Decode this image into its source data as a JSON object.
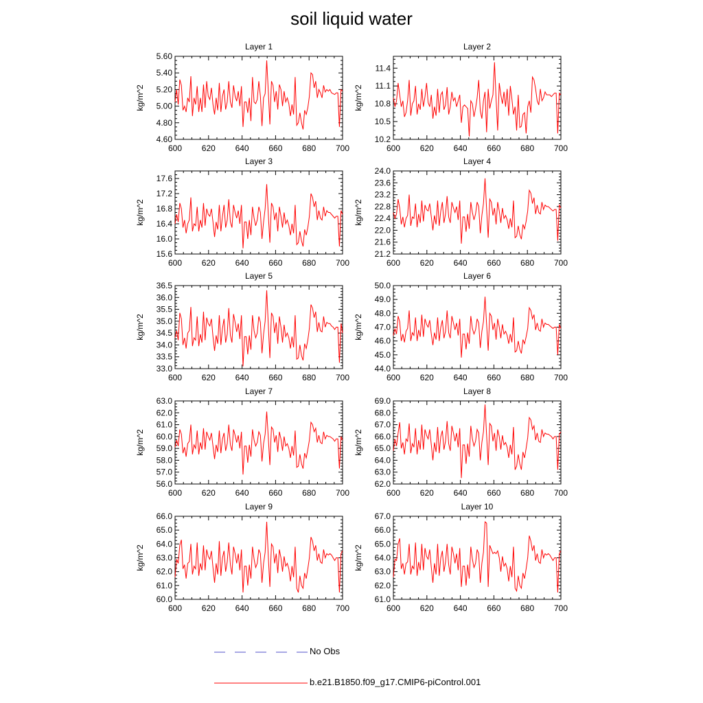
{
  "title": "soil liquid water",
  "legend": {
    "noobs_label": "No Obs",
    "noobs_color": "#5050c8",
    "run_label": "b.e21.B1850.f09_g17.CMIP6-piControl.001",
    "run_color": "#ff0000"
  },
  "chart_data": [
    {
      "type": "line",
      "title": "Layer 1",
      "ylabel": "kg/m^2",
      "xlim": [
        600,
        700
      ],
      "ylim": [
        4.6,
        5.6
      ],
      "xticks": [
        600,
        620,
        640,
        660,
        680,
        700
      ],
      "yticks": [
        "4.60",
        "4.80",
        "5.00",
        "5.20",
        "5.40",
        "5.60"
      ],
      "y": [
        5.05,
        5.2,
        5.02,
        5.32,
        5.25,
        4.95,
        5.0,
        4.93,
        5.1,
        5.05,
        5.36,
        4.88,
        5.1,
        5.02,
        5.24,
        4.93,
        5.1,
        4.93,
        5.26,
        4.98,
        5.3,
        5.12,
        5.08,
        5.22,
        5.02,
        4.9,
        5.1,
        4.95,
        5.28,
        4.93,
        5.12,
        5.2,
        4.96,
        5.05,
        5.3,
        5.05,
        4.98,
        5.25,
        5.12,
        5.06,
        5.18,
        5.0,
        5.24,
        4.75,
        5.05,
        5.05,
        4.92,
        5.1,
        4.82,
        5.35,
        5.05,
        5.03,
        5.08,
        5.3,
        5.12,
        4.76,
        5.1,
        5.15,
        5.55,
        5.18,
        4.78,
        5.3,
        5.25,
        5.05,
        5.18,
        4.96,
        5.26,
        5.2,
        5.0,
        5.18,
        5.05,
        5.1,
        5.03,
        4.88,
        5.02,
        4.9,
        5.35,
        4.77,
        4.8,
        4.92,
        4.8,
        4.72,
        4.95,
        4.9,
        4.98,
        5.12,
        5.4,
        5.38,
        5.22,
        5.3,
        5.1,
        5.2,
        5.16,
        5.1,
        5.25,
        5.17,
        5.2,
        5.18,
        5.2,
        5.16,
        5.15,
        5.14,
        5.16,
        5.16,
        4.75,
        5.2,
        5.18
      ]
    },
    {
      "type": "line",
      "title": "Layer 2",
      "ylabel": "kg/m^2",
      "xlim": [
        600,
        700
      ],
      "ylim": [
        10.2,
        11.6
      ],
      "xticks": [
        600,
        620,
        640,
        660,
        680,
        700
      ],
      "yticks": [
        "10.2",
        "10.5",
        "10.8",
        "11.1",
        "11.4"
      ],
      "y": [
        10.9,
        10.75,
        10.85,
        11.15,
        10.95,
        10.75,
        10.85,
        10.58,
        10.65,
        10.85,
        11.2,
        10.6,
        10.8,
        10.85,
        11.1,
        10.62,
        10.8,
        10.7,
        11.05,
        10.75,
        10.92,
        11.15,
        10.82,
        10.75,
        10.95,
        10.55,
        10.75,
        10.6,
        11.05,
        10.65,
        10.95,
        11.0,
        10.7,
        10.78,
        11.08,
        10.62,
        10.75,
        11.0,
        10.85,
        10.9,
        10.75,
        10.85,
        10.95,
        10.48,
        10.75,
        10.78,
        10.75,
        10.72,
        10.25,
        10.85,
        10.8,
        10.58,
        10.72,
        10.9,
        11.2,
        10.68,
        10.55,
        10.85,
        11.0,
        10.32,
        11.05,
        10.72,
        10.85,
        10.95,
        11.5,
        10.88,
        10.35,
        11.15,
        10.95,
        10.8,
        11.0,
        10.75,
        11.05,
        10.6,
        11.1,
        10.88,
        10.62,
        10.75,
        10.35,
        10.95,
        10.4,
        10.42,
        10.62,
        10.65,
        10.3,
        10.75,
        10.85,
        10.65,
        11.25,
        11.2,
        11.05,
        10.85,
        10.78,
        11.05,
        10.85,
        10.9,
        11.0,
        10.95,
        10.95,
        10.95,
        10.92,
        10.95,
        10.98,
        10.98,
        10.3,
        10.98,
        10.95
      ]
    },
    {
      "type": "line",
      "title": "Layer 3",
      "ylabel": "kg/m^2",
      "xlim": [
        600,
        700
      ],
      "ylim": [
        15.6,
        17.8
      ],
      "xticks": [
        600,
        620,
        640,
        660,
        680,
        700
      ],
      "yticks": [
        "15.6",
        "16.0",
        "16.4",
        "16.8",
        "17.2",
        "17.6"
      ],
      "y": [
        16.4,
        16.65,
        16.45,
        16.95,
        16.8,
        16.3,
        16.5,
        16.15,
        16.4,
        16.5,
        17.1,
        16.2,
        16.4,
        16.35,
        16.85,
        16.2,
        16.5,
        16.3,
        16.95,
        16.35,
        16.8,
        16.65,
        16.6,
        16.8,
        16.45,
        16.05,
        16.45,
        16.25,
        16.9,
        16.2,
        16.6,
        16.9,
        16.3,
        16.5,
        17.05,
        16.45,
        16.3,
        16.9,
        16.7,
        16.55,
        16.75,
        16.4,
        16.9,
        15.75,
        16.45,
        16.45,
        16.0,
        16.5,
        16.1,
        16.85,
        16.55,
        16.35,
        16.5,
        16.85,
        16.7,
        16.0,
        16.45,
        16.8,
        17.45,
        16.65,
        15.9,
        16.95,
        16.85,
        16.5,
        16.7,
        16.2,
        16.85,
        16.6,
        16.3,
        16.7,
        16.4,
        16.5,
        16.35,
        16.1,
        16.4,
        16.15,
        16.9,
        15.85,
        15.9,
        16.2,
        15.95,
        15.8,
        16.25,
        16.1,
        16.3,
        16.6,
        17.2,
        17.1,
        16.85,
        17.0,
        16.5,
        16.75,
        16.55,
        16.5,
        16.85,
        16.6,
        16.75,
        16.7,
        16.7,
        16.65,
        16.6,
        16.55,
        16.6,
        16.6,
        15.8,
        16.75,
        16.65
      ]
    },
    {
      "type": "line",
      "title": "Layer 4",
      "ylabel": "kg/m^2",
      "xlim": [
        600,
        700
      ],
      "ylim": [
        21.2,
        24.0
      ],
      "xticks": [
        600,
        620,
        640,
        660,
        680,
        700
      ],
      "yticks": [
        "21.2",
        "21.6",
        "22.0",
        "22.4",
        "22.8",
        "23.2",
        "23.6",
        "24.0"
      ],
      "y": [
        22.6,
        22.4,
        22.55,
        23.05,
        22.75,
        22.2,
        22.45,
        22.1,
        22.4,
        22.5,
        23.2,
        22.15,
        22.45,
        22.4,
        22.9,
        22.1,
        22.55,
        22.25,
        23.0,
        22.3,
        22.85,
        22.7,
        22.65,
        22.9,
        22.45,
        22.0,
        22.5,
        22.2,
        23.0,
        22.15,
        22.65,
        22.95,
        22.25,
        22.55,
        23.15,
        22.45,
        22.25,
        22.95,
        22.75,
        22.6,
        22.8,
        22.35,
        23.0,
        21.55,
        22.45,
        22.45,
        21.95,
        22.55,
        22.05,
        22.95,
        22.6,
        22.35,
        22.55,
        22.95,
        22.8,
        21.9,
        22.5,
        22.9,
        23.75,
        22.7,
        21.75,
        23.05,
        22.95,
        22.5,
        22.75,
        22.2,
        22.95,
        22.65,
        22.25,
        22.75,
        22.4,
        22.5,
        22.35,
        22.05,
        22.4,
        22.1,
        23.0,
        21.75,
        21.8,
        22.15,
        21.85,
        21.7,
        22.2,
        22.05,
        22.3,
        22.65,
        23.35,
        23.25,
        22.9,
        23.1,
        22.55,
        22.85,
        22.6,
        22.55,
        22.95,
        22.7,
        22.85,
        22.8,
        22.8,
        22.75,
        22.7,
        22.65,
        22.7,
        22.7,
        21.65,
        22.85,
        22.75
      ]
    },
    {
      "type": "line",
      "title": "Layer 5",
      "ylabel": "kg/m^2",
      "xlim": [
        600,
        700
      ],
      "ylim": [
        33.0,
        36.5
      ],
      "xticks": [
        600,
        620,
        640,
        660,
        680,
        700
      ],
      "yticks": [
        "33.0",
        "33.5",
        "34.0",
        "34.5",
        "35.0",
        "35.5",
        "36.0",
        "36.5"
      ],
      "y": [
        34.3,
        34.6,
        34.2,
        35.35,
        35.1,
        34.0,
        34.3,
        33.85,
        34.5,
        34.6,
        35.6,
        33.95,
        34.3,
        34.2,
        35.2,
        33.95,
        34.45,
        34.1,
        35.4,
        34.2,
        35.15,
        34.9,
        34.8,
        35.1,
        34.35,
        33.75,
        34.4,
        34.05,
        35.25,
        34.0,
        34.7,
        35.1,
        34.1,
        34.45,
        35.55,
        34.4,
        34.1,
        35.3,
        34.95,
        34.55,
        34.9,
        34.25,
        35.25,
        33.1,
        34.35,
        34.35,
        33.6,
        34.4,
        33.8,
        35.25,
        34.6,
        34.3,
        34.5,
        35.2,
        34.95,
        33.65,
        34.45,
        35.0,
        36.3,
        34.85,
        33.45,
        35.35,
        35.2,
        34.5,
        34.95,
        34.05,
        35.2,
        34.75,
        34.1,
        34.85,
        34.35,
        34.5,
        34.3,
        33.85,
        34.35,
        33.9,
        35.25,
        33.4,
        33.45,
        34.0,
        33.55,
        33.35,
        34.05,
        33.85,
        34.2,
        34.7,
        35.7,
        35.55,
        35.15,
        35.4,
        34.55,
        34.95,
        34.6,
        34.55,
        35.2,
        34.75,
        34.95,
        34.9,
        34.9,
        34.8,
        34.75,
        34.65,
        34.75,
        34.75,
        33.25,
        34.9,
        34.5
      ]
    },
    {
      "type": "line",
      "title": "Layer 6",
      "ylabel": "kg/m^2",
      "xlim": [
        600,
        700
      ],
      "ylim": [
        44.0,
        50.0
      ],
      "xticks": [
        600,
        620,
        640,
        660,
        680,
        700
      ],
      "yticks": [
        "44.0",
        "45.0",
        "46.0",
        "47.0",
        "48.0",
        "49.0",
        "50.0"
      ],
      "y": [
        46.4,
        46.9,
        46.5,
        47.8,
        47.4,
        46.0,
        46.5,
        45.9,
        46.7,
        46.9,
        48.2,
        46.0,
        46.6,
        46.4,
        47.7,
        46.0,
        46.8,
        46.3,
        47.9,
        46.3,
        47.6,
        47.2,
        47.0,
        47.5,
        46.5,
        45.7,
        46.6,
        46.1,
        47.7,
        46.0,
        47.0,
        47.5,
        46.2,
        46.7,
        48.2,
        46.6,
        46.2,
        47.8,
        47.3,
        46.8,
        47.3,
        46.4,
        47.6,
        44.8,
        46.5,
        46.5,
        45.4,
        46.6,
        45.8,
        47.8,
        46.9,
        46.5,
        46.8,
        47.6,
        47.3,
        45.5,
        46.7,
        47.4,
        49.2,
        47.2,
        45.3,
        48.0,
        47.8,
        46.8,
        47.3,
        46.1,
        47.6,
        47.0,
        46.2,
        47.2,
        46.5,
        46.7,
        46.4,
        45.8,
        46.5,
        45.9,
        47.7,
        45.2,
        45.3,
        46.0,
        45.4,
        45.1,
        46.1,
        45.8,
        46.3,
        46.9,
        48.4,
        48.2,
        47.6,
        47.9,
        46.8,
        47.3,
        46.8,
        46.7,
        47.6,
        47.0,
        47.3,
        47.2,
        47.2,
        47.1,
        47.0,
        46.9,
        47.0,
        47.0,
        45.0,
        47.2,
        46.9
      ]
    },
    {
      "type": "line",
      "title": "Layer 7",
      "ylabel": "kg/m^2",
      "xlim": [
        600,
        700
      ],
      "ylim": [
        56.0,
        63.0
      ],
      "xticks": [
        600,
        620,
        640,
        660,
        680,
        700
      ],
      "yticks": [
        "56.0",
        "57.0",
        "58.0",
        "59.0",
        "60.0",
        "61.0",
        "62.0",
        "63.0"
      ],
      "y": [
        59.1,
        59.7,
        59.2,
        60.6,
        60.2,
        58.6,
        59.1,
        58.3,
        59.4,
        59.6,
        61.0,
        58.5,
        59.3,
        59.0,
        60.5,
        58.5,
        59.5,
        58.9,
        60.7,
        58.9,
        60.4,
        60.0,
        59.7,
        60.3,
        59.2,
        58.1,
        59.3,
        58.7,
        60.5,
        58.6,
        59.8,
        60.3,
        58.8,
        59.4,
        61.0,
        59.3,
        58.8,
        60.6,
        60.1,
        59.5,
        60.1,
        59.0,
        60.4,
        56.8,
        59.2,
        59.2,
        57.8,
        59.3,
        58.3,
        60.6,
        59.7,
        59.2,
        59.5,
        60.4,
        60.1,
        57.9,
        59.4,
        60.2,
        62.1,
        59.9,
        57.6,
        60.8,
        60.6,
        59.5,
        60.1,
        58.7,
        60.4,
        59.8,
        58.8,
        60.0,
        59.2,
        59.4,
        59.0,
        58.2,
        59.2,
        58.4,
        60.5,
        57.4,
        57.5,
        58.5,
        57.7,
        57.3,
        58.6,
        58.2,
        58.9,
        59.7,
        61.2,
        61.0,
        60.4,
        60.7,
        59.5,
        60.1,
        59.5,
        59.4,
        60.4,
        59.8,
        60.1,
        60.0,
        60.0,
        59.9,
        59.8,
        59.6,
        59.8,
        59.8,
        57.3,
        60.0,
        59.7
      ]
    },
    {
      "type": "line",
      "title": "Layer 8",
      "ylabel": "kg/m^2",
      "xlim": [
        600,
        700
      ],
      "ylim": [
        62.0,
        69.0
      ],
      "xticks": [
        600,
        620,
        640,
        660,
        680,
        700
      ],
      "yticks": [
        "62.0",
        "63.0",
        "64.0",
        "65.0",
        "66.0",
        "67.0",
        "68.0",
        "69.0"
      ],
      "y": [
        64.8,
        65.8,
        65.2,
        66.3,
        67.2,
        65.0,
        65.5,
        64.5,
        65.8,
        65.6,
        67.1,
        64.6,
        65.4,
        65.1,
        66.7,
        64.5,
        65.7,
        64.9,
        67.0,
        64.9,
        66.6,
        66.1,
        65.8,
        66.6,
        65.3,
        64.0,
        65.5,
        64.7,
        66.8,
        64.6,
        66.0,
        66.5,
        64.9,
        65.6,
        67.3,
        65.4,
        64.8,
        66.9,
        66.3,
        65.6,
        66.3,
        65.1,
        66.7,
        62.5,
        65.3,
        65.3,
        63.7,
        65.4,
        64.3,
        66.9,
        65.8,
        65.2,
        65.6,
        66.6,
        66.3,
        64.0,
        65.5,
        66.4,
        68.7,
        66.1,
        63.6,
        67.1,
        66.9,
        65.6,
        66.3,
        64.8,
        66.6,
        66.0,
        64.9,
        66.1,
        65.3,
        65.5,
        65.1,
        64.2,
        65.3,
        64.5,
        66.8,
        63.2,
        63.5,
        64.5,
        63.7,
        63.2,
        64.7,
        64.2,
        65.0,
        65.9,
        67.6,
        67.4,
        66.6,
        66.9,
        65.7,
        66.3,
        65.6,
        65.5,
        66.6,
        66.0,
        66.3,
        66.2,
        66.2,
        66.1,
        66.0,
        65.8,
        66.0,
        66.0,
        63.2,
        66.2,
        66.4
      ]
    },
    {
      "type": "line",
      "title": "Layer 9",
      "ylabel": "kg/m^2",
      "xlim": [
        600,
        700
      ],
      "ylim": [
        60.0,
        66.0
      ],
      "xticks": [
        600,
        620,
        640,
        660,
        680,
        700
      ],
      "yticks": [
        "60.0",
        "61.0",
        "62.0",
        "63.0",
        "64.0",
        "65.0",
        "66.0"
      ],
      "y": [
        61.6,
        62.9,
        62.6,
        63.9,
        64.3,
        62.2,
        62.5,
        61.5,
        62.6,
        62.7,
        64.0,
        61.8,
        62.4,
        62.2,
        64.1,
        61.7,
        62.6,
        62.1,
        63.9,
        62.1,
        63.6,
        63.1,
        62.9,
        63.5,
        62.3,
        61.2,
        62.6,
        61.8,
        64.2,
        61.7,
        63.0,
        63.5,
        62.0,
        62.7,
        64.1,
        62.5,
        61.8,
        63.8,
        63.3,
        62.6,
        63.3,
        62.1,
        63.6,
        60.5,
        62.4,
        62.4,
        61.0,
        62.5,
        61.5,
        63.8,
        62.9,
        62.3,
        62.6,
        63.6,
        63.3,
        61.2,
        62.6,
        63.4,
        65.6,
        63.1,
        60.9,
        64.0,
        63.8,
        62.6,
        63.3,
        61.9,
        63.6,
        63.0,
        62.0,
        63.1,
        62.4,
        62.6,
        62.2,
        61.3,
        62.4,
        61.6,
        63.8,
        60.8,
        60.5,
        61.7,
        61.0,
        60.8,
        61.9,
        61.5,
        62.2,
        63.0,
        64.5,
        64.2,
        63.5,
        63.9,
        62.8,
        63.3,
        62.7,
        62.6,
        63.6,
        63.0,
        63.3,
        63.2,
        63.3,
        63.2,
        63.0,
        62.8,
        63.0,
        63.0,
        60.5,
        63.3,
        63.5
      ]
    },
    {
      "type": "line",
      "title": "Layer 10",
      "ylabel": "kg/m^2",
      "xlim": [
        600,
        700
      ],
      "ylim": [
        61.0,
        67.0
      ],
      "xticks": [
        600,
        620,
        640,
        660,
        680,
        700
      ],
      "yticks": [
        "61.0",
        "62.0",
        "63.0",
        "64.0",
        "65.0",
        "66.0",
        "67.0"
      ],
      "y": [
        62.6,
        63.9,
        63.8,
        65.0,
        65.4,
        63.2,
        63.6,
        62.8,
        63.6,
        63.7,
        65.0,
        62.8,
        63.4,
        63.2,
        65.1,
        62.7,
        63.7,
        63.1,
        65.0,
        63.1,
        64.7,
        64.1,
        63.9,
        64.6,
        63.3,
        62.2,
        63.6,
        62.8,
        65.0,
        62.7,
        64.0,
        64.5,
        63.0,
        63.7,
        65.0,
        63.5,
        62.8,
        64.8,
        64.3,
        63.6,
        64.3,
        63.1,
        64.7,
        61.9,
        63.4,
        63.4,
        62.0,
        63.5,
        62.5,
        64.8,
        63.9,
        63.3,
        63.6,
        64.6,
        64.3,
        62.2,
        63.6,
        64.4,
        66.6,
        66.5,
        61.9,
        64.9,
        64.6,
        64.3,
        64.4,
        64.3,
        64.5,
        64.0,
        63.0,
        64.1,
        63.4,
        63.6,
        63.2,
        62.3,
        63.4,
        62.6,
        64.8,
        61.8,
        61.6,
        62.7,
        62.0,
        61.8,
        62.9,
        62.5,
        63.2,
        64.0,
        65.6,
        65.2,
        64.5,
        64.9,
        63.8,
        64.3,
        63.7,
        63.6,
        64.6,
        64.0,
        64.3,
        64.2,
        64.3,
        64.2,
        64.0,
        63.8,
        64.0,
        64.0,
        61.5,
        64.3,
        64.5
      ]
    }
  ]
}
